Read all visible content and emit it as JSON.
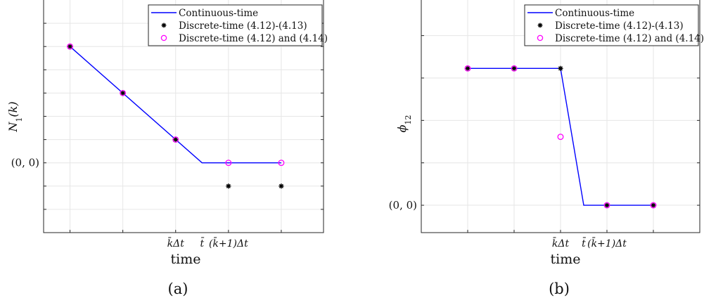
{
  "chart_data": [
    {
      "type": "line",
      "panel_label": "(a)",
      "xlabel": "time",
      "ylabel": "N_1(k)",
      "ylabel_parts": {
        "main": "N",
        "sub": "1",
        "rest": "(k)"
      },
      "xlim": [
        -0.5,
        4.8
      ],
      "ylim": [
        -3,
        7
      ],
      "x_tick_labels": [
        {
          "x": 2,
          "text": "k̄Δt"
        },
        {
          "x": 2.5,
          "text": "t̄"
        },
        {
          "x": 3,
          "text": "(k̄+1)Δt"
        }
      ],
      "y_tick_labels": [
        {
          "y": 0,
          "text": "(0, 0)"
        }
      ],
      "legend_position": "top-right",
      "series": [
        {
          "name": "Continuous-time",
          "style": "line",
          "color": "#0000ff",
          "x": [
            0,
            2.5,
            4
          ],
          "y": [
            5,
            0,
            0
          ]
        },
        {
          "name": "Discrete-time (4.12)-(4.13)",
          "style": "asterisk",
          "color": "#000000",
          "x": [
            0,
            1,
            2,
            3,
            4
          ],
          "y": [
            5,
            3,
            1,
            -1,
            -1
          ]
        },
        {
          "name": "Discrete-time (4.12) and (4.14)",
          "style": "circle",
          "color": "#ff00ff",
          "x": [
            0,
            1,
            2,
            3,
            4
          ],
          "y": [
            5,
            3,
            1,
            0,
            0
          ]
        }
      ]
    },
    {
      "type": "line",
      "panel_label": "(b)",
      "xlabel": "time",
      "ylabel": "ϕ12",
      "ylabel_parts": {
        "main": "ϕ",
        "sub": "12",
        "rest": ""
      },
      "xlim": [
        -1,
        5
      ],
      "ylim": [
        -0.4,
        3
      ],
      "x_tick_labels": [
        {
          "x": 2,
          "text": "k̄Δt"
        },
        {
          "x": 2.5,
          "text": "t̄"
        },
        {
          "x": 3,
          "text": "(k̄+1)Δt"
        }
      ],
      "y_tick_labels": [
        {
          "y": 0,
          "text": "(0, 0)"
        }
      ],
      "legend_position": "top-right",
      "series": [
        {
          "name": "Continuous-time",
          "style": "line",
          "color": "#0000ff",
          "x": [
            0,
            2,
            2.5,
            4
          ],
          "y": [
            2,
            2,
            0,
            0
          ]
        },
        {
          "name": "Discrete-time (4.12)-(4.13)",
          "style": "asterisk",
          "color": "#000000",
          "x": [
            0,
            1,
            2,
            3,
            4
          ],
          "y": [
            2,
            2,
            2,
            0,
            0
          ]
        },
        {
          "name": "Discrete-time (4.12) and (4.14)",
          "style": "circle",
          "color": "#ff00ff",
          "x": [
            0,
            1,
            2,
            3,
            4
          ],
          "y": [
            2,
            2,
            1,
            0,
            0
          ]
        }
      ]
    }
  ]
}
